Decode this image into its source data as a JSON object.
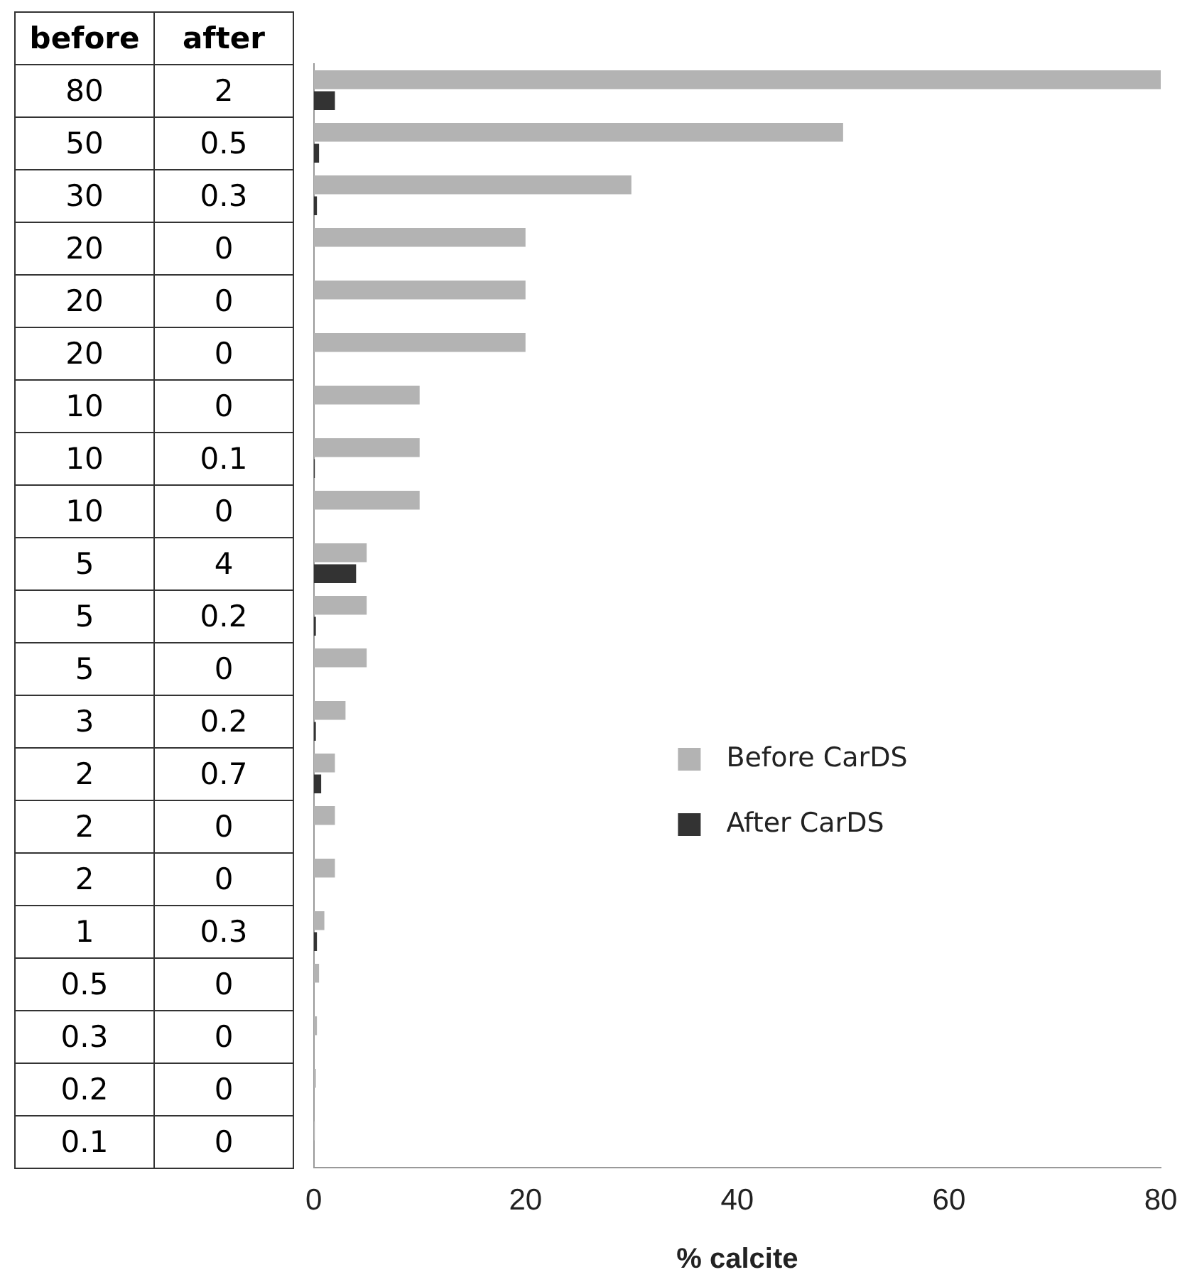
{
  "chart_data": {
    "type": "bar",
    "orientation": "horizontal",
    "xlabel": "% calcite",
    "categories": [
      null,
      null,
      null,
      null,
      null,
      null,
      null,
      null,
      null,
      null,
      null,
      null,
      null,
      null,
      null,
      null,
      null,
      null,
      null,
      null,
      null
    ],
    "series": [
      {
        "name": "Before CarDS",
        "color": "#b3b3b3",
        "values": [
          80,
          50,
          30,
          20,
          20,
          20,
          10,
          10,
          10,
          5,
          5,
          5,
          3,
          2,
          2,
          2,
          1,
          0.5,
          0.3,
          0.2,
          0.1
        ]
      },
      {
        "name": "After CarDS",
        "color": "#333333",
        "values": [
          2,
          0.5,
          0.3,
          0,
          0,
          0,
          0,
          0.1,
          0,
          4,
          0.2,
          0,
          0.2,
          0.7,
          0,
          0,
          0.3,
          0,
          0,
          0,
          0
        ]
      }
    ],
    "xlim": [
      0,
      80
    ],
    "xticks": [
      0,
      20,
      40,
      60,
      80
    ],
    "grid": false,
    "legend": "right",
    "data_labels": true,
    "annotations": [
      "before",
      "after"
    ]
  }
}
